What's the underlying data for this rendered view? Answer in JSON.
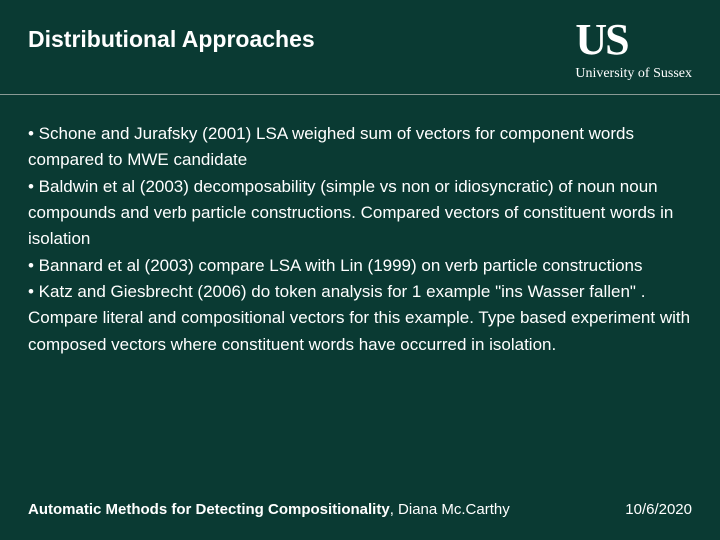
{
  "colors": {
    "background": "#0a3a33",
    "text": "#ffffff",
    "divider": "#8a9a95"
  },
  "typography": {
    "title_fontsize": 23,
    "body_fontsize": 17,
    "footer_fontsize": 15,
    "logo_fontsize": 44,
    "logo_sub_fontsize": 14
  },
  "header": {
    "title": "Distributional Approaches",
    "logo_main": "US",
    "logo_sub": "University of Sussex"
  },
  "bullets": [
    "• Schone and Jurafsky (2001) LSA weighed sum of vectors for component words compared to  MWE candidate",
    "• Baldwin et al (2003) decomposability (simple vs non or idiosyncratic) of noun noun compounds and verb particle constructions. Compared vectors of constituent words in isolation",
    "• Bannard et al (2003) compare LSA with Lin (1999) on verb particle constructions",
    "• Katz and Giesbrecht  (2006) do token analysis for 1 example \"ins Wasser fallen\" . Compare literal and compositional vectors for this example. Type based experiment with composed vectors where constituent words have occurred in isolation."
  ],
  "footer": {
    "talk_title": "Automatic Methods for Detecting Compositionality",
    "author_sep": ", ",
    "author": "Diana Mc.Carthy",
    "date": "10/6/2020"
  }
}
